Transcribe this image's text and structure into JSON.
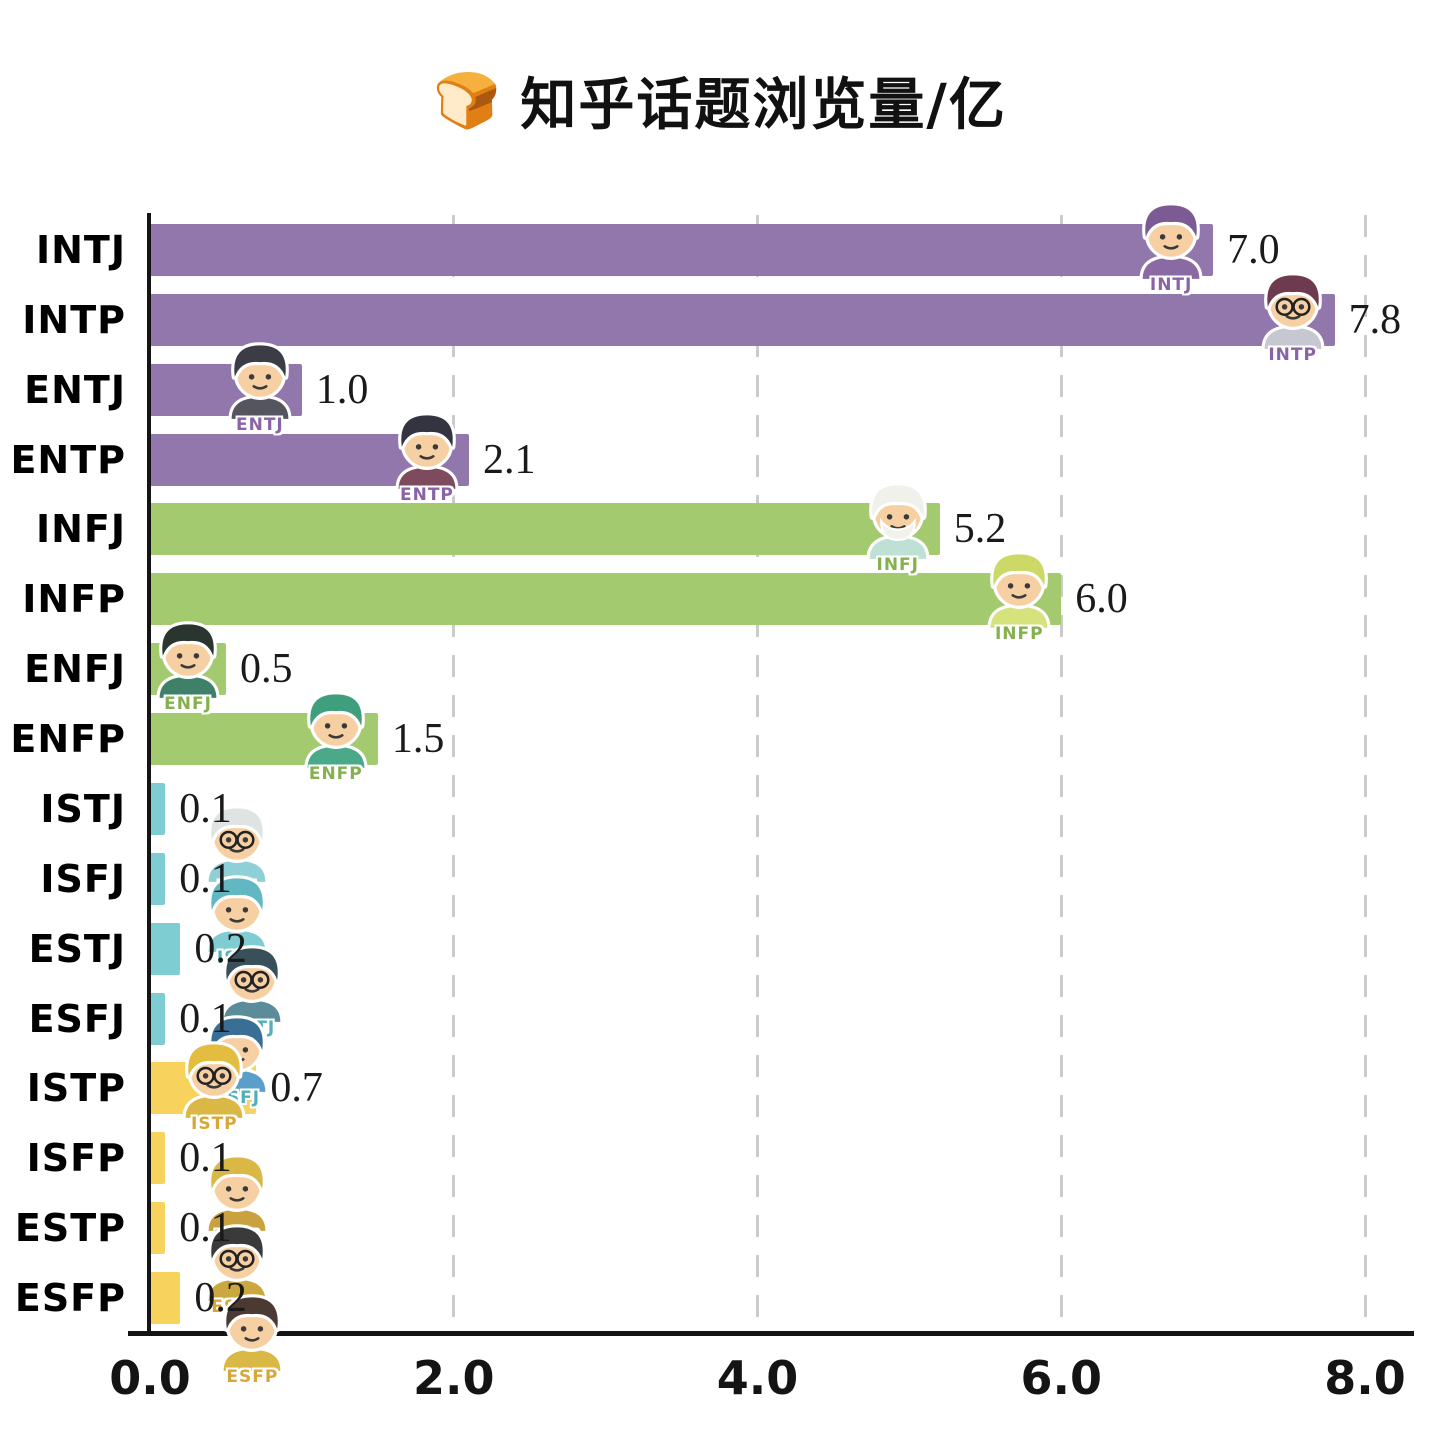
{
  "title": {
    "emoji": "🍞",
    "text": "知乎话题浏览量/亿"
  },
  "chart_data": {
    "type": "bar",
    "orientation": "horizontal",
    "title": "知乎话题浏览量/亿",
    "xlabel": "",
    "ylabel": "",
    "xlim": [
      0,
      8.0
    ],
    "x_ticks": [
      "0.0",
      "2.0",
      "4.0",
      "6.0",
      "8.0"
    ],
    "grid": "vertical-dashed",
    "legend": "none",
    "categories": [
      "INTJ",
      "INTP",
      "ENTJ",
      "ENTP",
      "INFJ",
      "INFP",
      "ENFJ",
      "ENFP",
      "ISTJ",
      "ISFJ",
      "ESTJ",
      "ESFJ",
      "ISTP",
      "ISFP",
      "ESTP",
      "ESFP"
    ],
    "values": [
      7.0,
      7.8,
      1.0,
      2.1,
      5.2,
      6.0,
      0.5,
      1.5,
      0.1,
      0.1,
      0.2,
      0.1,
      0.7,
      0.1,
      0.1,
      0.2
    ],
    "group_colors": {
      "NT_purple": "#9277ac",
      "NF_green": "#a4ca70",
      "SJ_teal": "#7ecdd3",
      "SP_yellow": "#f7d35e"
    },
    "bars": [
      {
        "label": "INTJ",
        "value": 7.0,
        "display": "7.0",
        "color": "#9277ac",
        "icon": "intj-character-icon",
        "hair": "#7c5a94",
        "shirt": "#8a6aa2",
        "label_color": "#8a63a6",
        "acc": ""
      },
      {
        "label": "INTP",
        "value": 7.8,
        "display": "7.8",
        "color": "#9277ac",
        "icon": "intp-character-icon",
        "hair": "#6e3a50",
        "shirt": "#c7c7d2",
        "label_color": "#8a63a6",
        "acc": "glasses"
      },
      {
        "label": "ENTJ",
        "value": 1.0,
        "display": "1.0",
        "color": "#9277ac",
        "icon": "entj-character-icon",
        "hair": "#3c3c46",
        "shirt": "#55555f",
        "label_color": "#8a63a6",
        "acc": ""
      },
      {
        "label": "ENTP",
        "value": 2.1,
        "display": "2.1",
        "color": "#9277ac",
        "icon": "entp-character-icon",
        "hair": "#343440",
        "shirt": "#7e4a5e",
        "label_color": "#8a63a6",
        "acc": ""
      },
      {
        "label": "INFJ",
        "value": 5.2,
        "display": "5.2",
        "color": "#a4ca70",
        "icon": "infj-character-icon",
        "hair": "#eff1ea",
        "shirt": "#bfe0d5",
        "label_color": "#84b04e",
        "acc": "beard"
      },
      {
        "label": "INFP",
        "value": 6.0,
        "display": "6.0",
        "color": "#a4ca70",
        "icon": "infp-character-icon",
        "hair": "#ccd966",
        "shirt": "#d6e27c",
        "label_color": "#84b04e",
        "acc": ""
      },
      {
        "label": "ENFJ",
        "value": 0.5,
        "display": "0.5",
        "color": "#a4ca70",
        "icon": "enfj-character-icon",
        "hair": "#2a3530",
        "shirt": "#3f8068",
        "label_color": "#84b04e",
        "acc": ""
      },
      {
        "label": "ENFP",
        "value": 1.5,
        "display": "1.5",
        "color": "#a4ca70",
        "icon": "enfp-character-icon",
        "hair": "#3f9e7c",
        "shirt": "#4aa988",
        "label_color": "#84b04e",
        "acc": ""
      },
      {
        "label": "ISTJ",
        "value": 0.1,
        "display": "0.1",
        "color": "#7ecdd3",
        "icon": "istj-character-icon",
        "hair": "#e0e3e3",
        "shirt": "#8fd0d6",
        "label_color": "#4fb0ba",
        "acc": "glasses"
      },
      {
        "label": "ISFJ",
        "value": 0.1,
        "display": "0.1",
        "color": "#7ecdd3",
        "icon": "isfj-character-icon",
        "hair": "#62b8c2",
        "shirt": "#7fccd3",
        "label_color": "#4fb0ba",
        "acc": ""
      },
      {
        "label": "ESTJ",
        "value": 0.2,
        "display": "0.2",
        "color": "#7ecdd3",
        "icon": "estj-character-icon",
        "hair": "#39505a",
        "shirt": "#5a8d99",
        "label_color": "#4fb0ba",
        "acc": "glasses"
      },
      {
        "label": "ESFJ",
        "value": 0.1,
        "display": "0.1",
        "color": "#7ecdd3",
        "icon": "esfj-character-icon",
        "hair": "#3a6f95",
        "shirt": "#5a9ec9",
        "label_color": "#4fb0ba",
        "acc": ""
      },
      {
        "label": "ISTP",
        "value": 0.7,
        "display": "0.7",
        "color": "#f7d35e",
        "icon": "istp-character-icon",
        "hair": "#e2bd3f",
        "shirt": "#d9b845",
        "label_color": "#d8a738",
        "acc": "glasses"
      },
      {
        "label": "ISFP",
        "value": 0.1,
        "display": "0.1",
        "color": "#f7d35e",
        "icon": "isfp-character-icon",
        "hair": "#d9b845",
        "shirt": "#c9a23f",
        "label_color": "#d8a738",
        "acc": ""
      },
      {
        "label": "ESTP",
        "value": 0.1,
        "display": "0.1",
        "color": "#f7d35e",
        "icon": "estp-character-icon",
        "hair": "#3a3a3a",
        "shirt": "#caa83f",
        "label_color": "#d8a738",
        "acc": "glasses"
      },
      {
        "label": "ESFP",
        "value": 0.2,
        "display": "0.2",
        "color": "#f7d35e",
        "icon": "esfp-character-icon",
        "hair": "#4a3a33",
        "shirt": "#d9b845",
        "label_color": "#d8a738",
        "acc": ""
      }
    ]
  }
}
